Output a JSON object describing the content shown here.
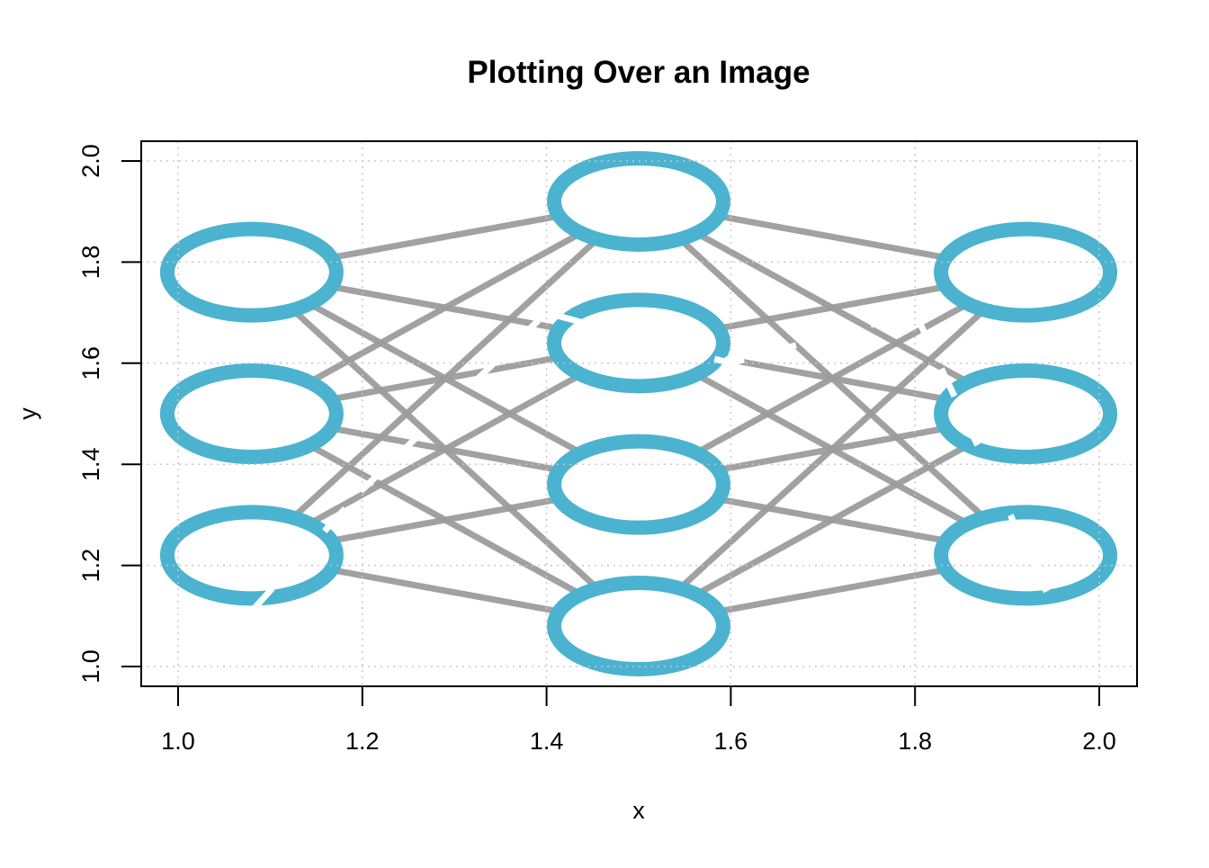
{
  "chart_data": {
    "type": "line",
    "title": "Plotting Over an Image",
    "xlabel": "x",
    "ylabel": "y",
    "xlim": [
      1.0,
      2.0
    ],
    "ylim": [
      1.0,
      2.0
    ],
    "x_ticks": [
      "1.0",
      "1.2",
      "1.4",
      "1.6",
      "1.8",
      "2.0"
    ],
    "y_ticks": [
      "1.0",
      "1.2",
      "1.4",
      "1.6",
      "1.8",
      "2.0"
    ],
    "grid": true,
    "grid_style": "dotted",
    "series": [
      {
        "x": [
          1.08,
          1.2,
          1.4,
          1.6,
          1.8,
          1.95
        ],
        "y": [
          1.11,
          1.35,
          1.7,
          1.6,
          1.7,
          1.12
        ],
        "color": "#ffffff",
        "line_style": "dashed",
        "marker_at": [
          1.6,
          1.6
        ]
      }
    ],
    "background_image": {
      "description": "neural network diagram",
      "layers": [
        [
          1.78,
          1.5,
          1.22
        ],
        [
          1.92,
          1.64,
          1.36,
          1.08
        ],
        [
          1.78,
          1.5,
          1.22
        ]
      ],
      "layer_x": [
        1.08,
        1.5,
        1.92
      ],
      "node_color": "#4bb3d0",
      "edge_color": "#9c9c9c"
    }
  }
}
